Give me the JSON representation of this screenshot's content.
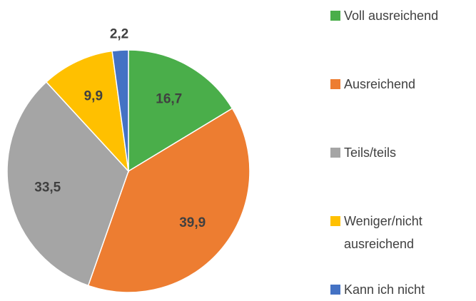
{
  "chart_data": {
    "type": "pie",
    "categories": [
      "Voll ausreichend",
      "Ausreichend",
      "Teils/teils",
      "Weniger/nicht ausreichend",
      "Kann ich nicht"
    ],
    "values": [
      16.7,
      39.9,
      33.5,
      9.9,
      2.2
    ],
    "value_labels": [
      "16,7",
      "39,9",
      "33,5",
      "9,9",
      "2,2"
    ],
    "colors": [
      "#4aae4a",
      "#ed7d31",
      "#a5a5a5",
      "#ffc000",
      "#4472c4"
    ],
    "legend": "right"
  }
}
